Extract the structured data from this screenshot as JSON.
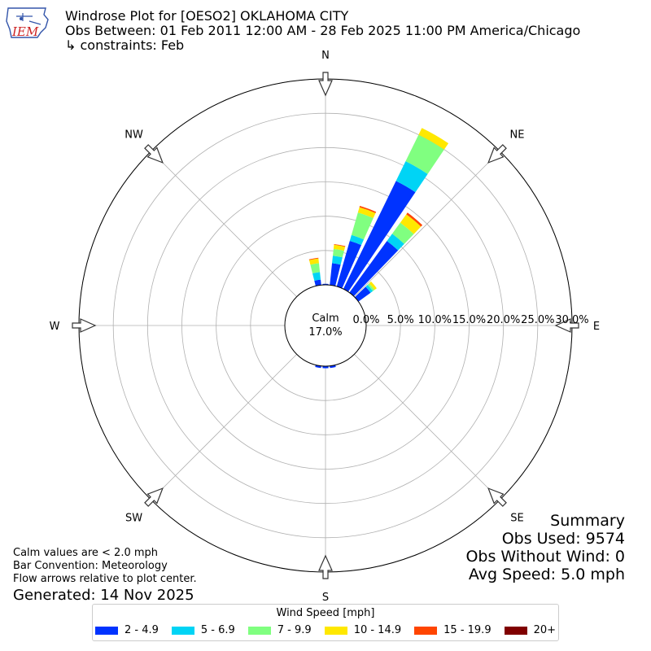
{
  "header": {
    "line1": "Windrose Plot for [OESO2] OKLAHOMA CITY",
    "line2": "Obs Between: 01 Feb 2011 12:00 AM - 28 Feb 2025 11:00 PM America/Chicago",
    "line3": "↳ constraints: Feb"
  },
  "logo": {
    "text": "IEM",
    "colors": {
      "text": "#cc2222",
      "outline": "#3355aa"
    }
  },
  "notes": {
    "line1": "Calm values are < 2.0 mph",
    "line2": "Bar Convention: Meteorology",
    "line3": "Flow arrows relative to plot center.",
    "generated": "Generated: 14 Nov 2025"
  },
  "summary": {
    "title": "Summary",
    "obs_used": "Obs Used: 9574",
    "obs_without_wind": "Obs Without Wind: 0",
    "avg_speed": "Avg Speed: 5.0 mph"
  },
  "chart_data": {
    "type": "windrose",
    "calm_label": "Calm",
    "calm_value": "17.0%",
    "calm_percent": 17.0,
    "rlim": [
      0,
      30
    ],
    "radial_ticks": [
      0,
      5,
      10,
      15,
      20,
      25,
      30
    ],
    "radial_tick_labels": [
      "0.0%",
      "5.0%",
      "10.0%",
      "15.0%",
      "20.0%",
      "25.0%",
      "30.0%"
    ],
    "directions": [
      {
        "label": "N",
        "angle": 0
      },
      {
        "label": "NE",
        "angle": 45
      },
      {
        "label": "E",
        "angle": 90
      },
      {
        "label": "SE",
        "angle": 135
      },
      {
        "label": "S",
        "angle": 180
      },
      {
        "label": "SW",
        "angle": 225
      },
      {
        "label": "W",
        "angle": 270
      },
      {
        "label": "NW",
        "angle": 315
      }
    ],
    "legend_title": "Wind Speed [mph]",
    "bins": [
      {
        "label": "2 - 4.9",
        "color": "#0033ff"
      },
      {
        "label": "5 - 6.9",
        "color": "#00d4f5"
      },
      {
        "label": "7 - 9.9",
        "color": "#80ff80"
      },
      {
        "label": "10 - 14.9",
        "color": "#ffe800"
      },
      {
        "label": "15 - 19.9",
        "color": "#ff4500"
      },
      {
        "label": "20+",
        "color": "#800000"
      }
    ],
    "sectors": [
      {
        "angle": 0,
        "values": [
          0.15,
          0.0,
          0.0,
          0.0,
          0.0,
          0.0
        ]
      },
      {
        "angle": 10,
        "values": [
          3.2,
          1.1,
          1.0,
          0.6,
          0.1,
          0.0
        ]
      },
      {
        "angle": 20,
        "values": [
          6.9,
          0.9,
          3.4,
          0.8,
          0.2,
          0.0
        ]
      },
      {
        "angle": 30,
        "values": [
          17.5,
          3.2,
          4.3,
          1.1,
          0.0,
          0.0
        ]
      },
      {
        "angle": 40,
        "values": [
          9.3,
          1.3,
          2.0,
          1.5,
          0.3,
          0.0
        ]
      },
      {
        "angle": 50,
        "values": [
          2.2,
          0.4,
          0.3,
          0.4,
          0.0,
          0.0
        ]
      },
      {
        "angle": 170,
        "values": [
          0.3,
          0.0,
          0.0,
          0.0,
          0.0,
          0.0
        ]
      },
      {
        "angle": 180,
        "values": [
          0.3,
          0.0,
          0.0,
          0.0,
          0.0,
          0.0
        ]
      },
      {
        "angle": 190,
        "values": [
          0.3,
          0.0,
          0.0,
          0.0,
          0.0,
          0.0
        ]
      },
      {
        "angle": 350,
        "values": [
          0.8,
          1.1,
          1.3,
          0.7,
          0.1,
          0.0
        ]
      }
    ]
  }
}
